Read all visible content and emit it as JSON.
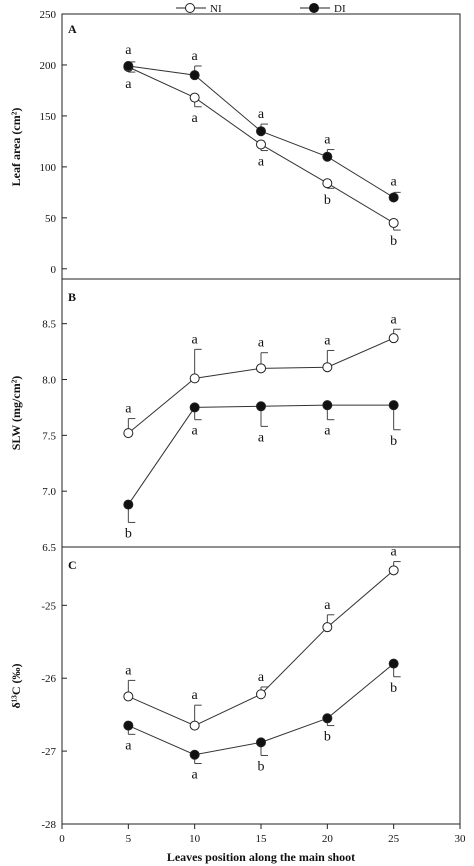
{
  "legend": {
    "ni": "NI",
    "di": "DI"
  },
  "x_axis": {
    "label": "Leaves position along the main shoot",
    "ticks": [
      0,
      5,
      10,
      15,
      20,
      25,
      30
    ],
    "range": [
      0,
      30
    ]
  },
  "chart_data": [
    {
      "type": "line",
      "panel": "A",
      "ylabel": "Leaf area (cm²)",
      "ylim": [
        -10,
        250
      ],
      "yticks": [
        0,
        50,
        100,
        150,
        200,
        250
      ],
      "x": [
        5,
        10,
        15,
        20,
        25
      ],
      "series": [
        {
          "name": "NI",
          "marker": "open-circle",
          "values": [
            198,
            168,
            122,
            84,
            45
          ],
          "errors": [
            5,
            9,
            6,
            5,
            7
          ],
          "labels": [
            "a",
            "a",
            "a",
            "b",
            "b"
          ]
        },
        {
          "name": "DI",
          "marker": "filled-circle",
          "values": [
            199,
            190,
            135,
            110,
            70
          ],
          "errors": [
            4,
            9,
            7,
            7,
            5
          ],
          "labels": [
            "a",
            "a",
            "a",
            "a",
            "a"
          ]
        }
      ]
    },
    {
      "type": "line",
      "panel": "B",
      "ylabel": "SLW (mg/cm²)",
      "ylim": [
        6.5,
        8.9
      ],
      "yticks": [
        6.5,
        7.0,
        7.5,
        8.0,
        8.5
      ],
      "x": [
        5,
        10,
        15,
        20,
        25
      ],
      "series": [
        {
          "name": "NI",
          "marker": "open-circle",
          "values": [
            7.52,
            8.01,
            8.1,
            8.11,
            8.37
          ],
          "errors": [
            0.13,
            0.26,
            0.14,
            0.15,
            0.08
          ],
          "labels": [
            "a",
            "a",
            "a",
            "a",
            "a"
          ]
        },
        {
          "name": "DI",
          "marker": "filled-circle",
          "values": [
            6.88,
            7.75,
            7.76,
            7.77,
            7.77
          ],
          "errors": [
            0.16,
            0.11,
            0.18,
            0.13,
            0.22
          ],
          "labels": [
            "b",
            "a",
            "a",
            "a",
            "b"
          ]
        }
      ]
    },
    {
      "type": "line",
      "panel": "C",
      "ylabel": "δ¹³C (‰)",
      "ylim": [
        -28,
        -24.2
      ],
      "yticks": [
        -28,
        -27,
        -26,
        -25
      ],
      "x": [
        5,
        10,
        15,
        20,
        25
      ],
      "series": [
        {
          "name": "NI",
          "marker": "open-circle",
          "values": [
            -26.25,
            -26.65,
            -26.22,
            -25.3,
            -24.52
          ],
          "errors": [
            0.22,
            0.28,
            0.1,
            0.17,
            0.12
          ],
          "labels": [
            "a",
            "a",
            "a",
            "a",
            "a"
          ]
        },
        {
          "name": "DI",
          "marker": "filled-circle",
          "values": [
            -26.65,
            -27.05,
            -26.88,
            -26.55,
            -25.8
          ],
          "errors": [
            0.12,
            0.12,
            0.18,
            0.1,
            0.18
          ],
          "labels": [
            "a",
            "a",
            "b",
            "b",
            "b"
          ]
        }
      ]
    }
  ]
}
